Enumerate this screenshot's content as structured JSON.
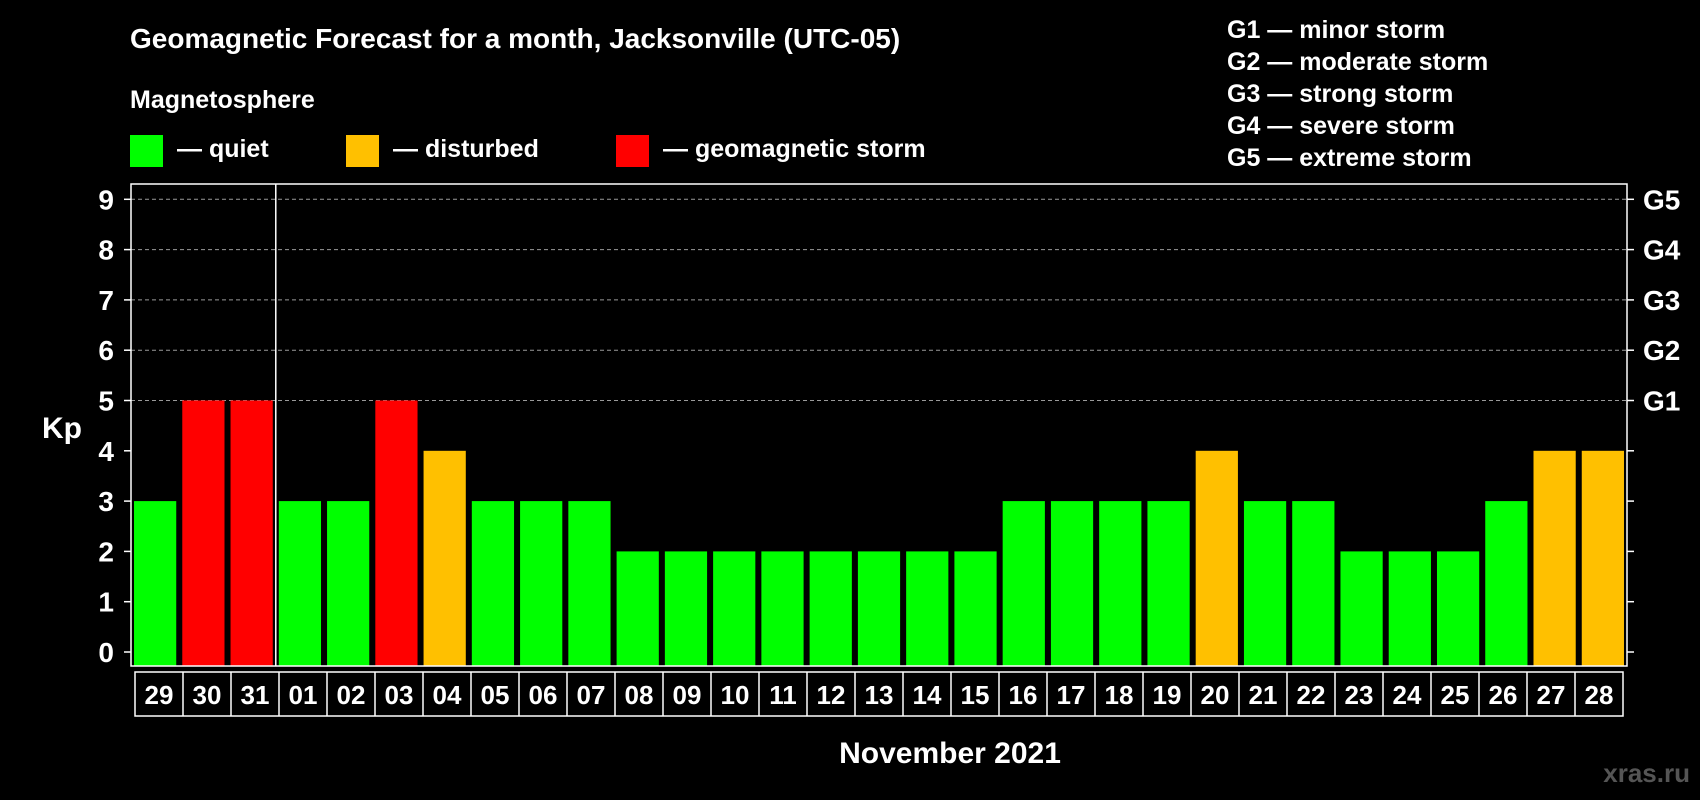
{
  "chart_data": {
    "type": "bar",
    "title": "Geomagnetic Forecast for a month, Jacksonville (UTC-05)",
    "legend_heading": "Magnetosphere",
    "legend": [
      {
        "label": "— quiet",
        "color": "#00ff00"
      },
      {
        "label": "— disturbed",
        "color": "#ffc000"
      },
      {
        "label": "— geomagnetic storm",
        "color": "#ff0000"
      }
    ],
    "storm_scale": [
      "G1 — minor storm",
      "G2 — moderate storm",
      "G3 — strong storm",
      "G4 — severe storm",
      "G5 — extreme storm"
    ],
    "ylabel": "Kp",
    "xlabel": "November 2021",
    "ylim": [
      0,
      9
    ],
    "yticks": [
      "0",
      "1",
      "2",
      "3",
      "4",
      "5",
      "6",
      "7",
      "8",
      "9"
    ],
    "right_ticks": [
      {
        "kp": 5,
        "label": "G1"
      },
      {
        "kp": 6,
        "label": "G2"
      },
      {
        "kp": 7,
        "label": "G3"
      },
      {
        "kp": 8,
        "label": "G4"
      },
      {
        "kp": 9,
        "label": "G5"
      }
    ],
    "grid": true,
    "month_divider_after_index": 2,
    "categories": [
      "29",
      "30",
      "31",
      "01",
      "02",
      "03",
      "04",
      "05",
      "06",
      "07",
      "08",
      "09",
      "10",
      "11",
      "12",
      "13",
      "14",
      "15",
      "16",
      "17",
      "18",
      "19",
      "20",
      "21",
      "22",
      "23",
      "24",
      "25",
      "26",
      "27",
      "28"
    ],
    "values": [
      3,
      5,
      5,
      3,
      3,
      5,
      4,
      3,
      3,
      3,
      2,
      2,
      2,
      2,
      2,
      2,
      2,
      2,
      3,
      3,
      3,
      3,
      4,
      3,
      3,
      2,
      2,
      2,
      3,
      4,
      4
    ],
    "colors": {
      "quiet": "#00ff00",
      "disturbed": "#ffc000",
      "storm": "#ff0000"
    }
  },
  "watermark": "xras.ru"
}
